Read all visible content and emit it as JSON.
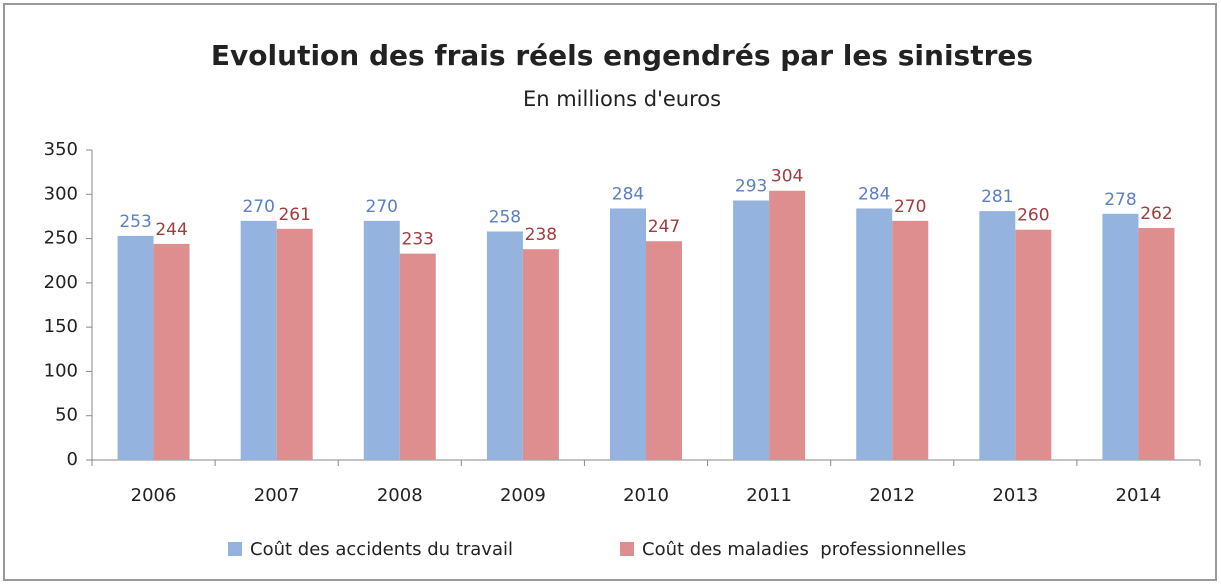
{
  "chart_data": {
    "type": "bar",
    "title": "Evolution des frais réels engendrés par les sinistres",
    "subtitle": "En millions d'euros",
    "categories": [
      "2006",
      "2007",
      "2008",
      "2009",
      "2010",
      "2011",
      "2012",
      "2013",
      "2014"
    ],
    "series": [
      {
        "name": "Coût des accidents du travail",
        "color": "#95b3df",
        "label_color": "#5a7fc4",
        "values": [
          253,
          270,
          270,
          258,
          284,
          293,
          284,
          281,
          278
        ]
      },
      {
        "name": "Coût des maladies  professionnelles",
        "color": "#df8e8f",
        "label_color": "#a23c3d",
        "values": [
          244,
          261,
          233,
          238,
          247,
          304,
          270,
          260,
          262
        ]
      }
    ],
    "ylim": [
      0,
      350
    ],
    "yticks": [
      0,
      50,
      100,
      150,
      200,
      250,
      300,
      350
    ],
    "grid": false,
    "legend": "bottom"
  }
}
